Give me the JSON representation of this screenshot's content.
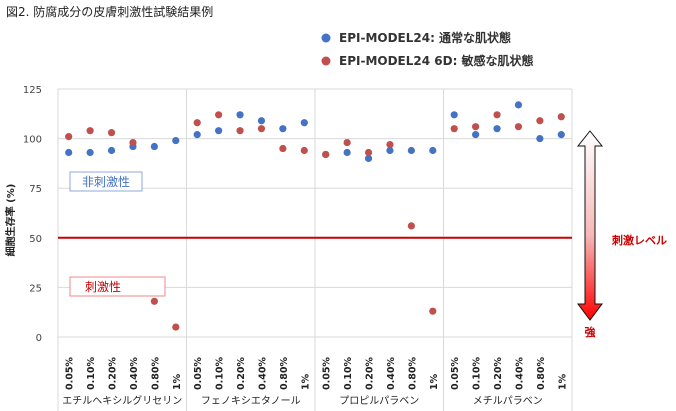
{
  "title": "図2. 防腐成分の皮膚刺激性試験結果例",
  "chart_data": {
    "type": "scatter",
    "title": "図2. 防腐成分の皮膚刺激性試験結果例",
    "ylabel": "細胞生存率 (%)",
    "ylim": [
      0,
      125
    ],
    "yticks": [
      0,
      25,
      50,
      75,
      100,
      125
    ],
    "threshold": 50,
    "groups": [
      {
        "name": "エチルヘキシルグリセリン",
        "categories": [
          "0.05%",
          "0.10%",
          "0.20%",
          "0.40%",
          "0.80%",
          "1%"
        ]
      },
      {
        "name": "フェノキシエタノール",
        "categories": [
          "0.05%",
          "0.10%",
          "0.20%",
          "0.40%",
          "0.80%",
          "1%"
        ]
      },
      {
        "name": "プロピルパラベン",
        "categories": [
          "0.05%",
          "0.10%",
          "0.20%",
          "0.40%",
          "0.80%",
          "1%"
        ]
      },
      {
        "name": "メチルパラベン",
        "categories": [
          "0.05%",
          "0.10%",
          "0.20%",
          "0.40%",
          "0.80%",
          "1%"
        ]
      }
    ],
    "series": [
      {
        "name": "EPI-MODEL24: 通常な肌状態",
        "color": "#4472C4",
        "values": [
          [
            93,
            93,
            94,
            96,
            96,
            99
          ],
          [
            102,
            104,
            112,
            109,
            105,
            108
          ],
          [
            92,
            93,
            90,
            94,
            94,
            94
          ],
          [
            112,
            102,
            105,
            117,
            100,
            102
          ]
        ]
      },
      {
        "name": "EPI-MODEL24 6D: 敏感な肌状態",
        "color": "#C0504D",
        "values": [
          [
            101,
            104,
            103,
            98,
            18,
            5
          ],
          [
            108,
            112,
            104,
            105,
            95,
            94
          ],
          [
            92,
            98,
            93,
            97,
            56,
            13
          ],
          [
            105,
            106,
            112,
            106,
            109,
            111
          ]
        ]
      }
    ],
    "annotations": {
      "non_irritant": "非刺激性",
      "irritant": "刺激性",
      "level_label": "刺激レベル",
      "strong": "強"
    }
  }
}
